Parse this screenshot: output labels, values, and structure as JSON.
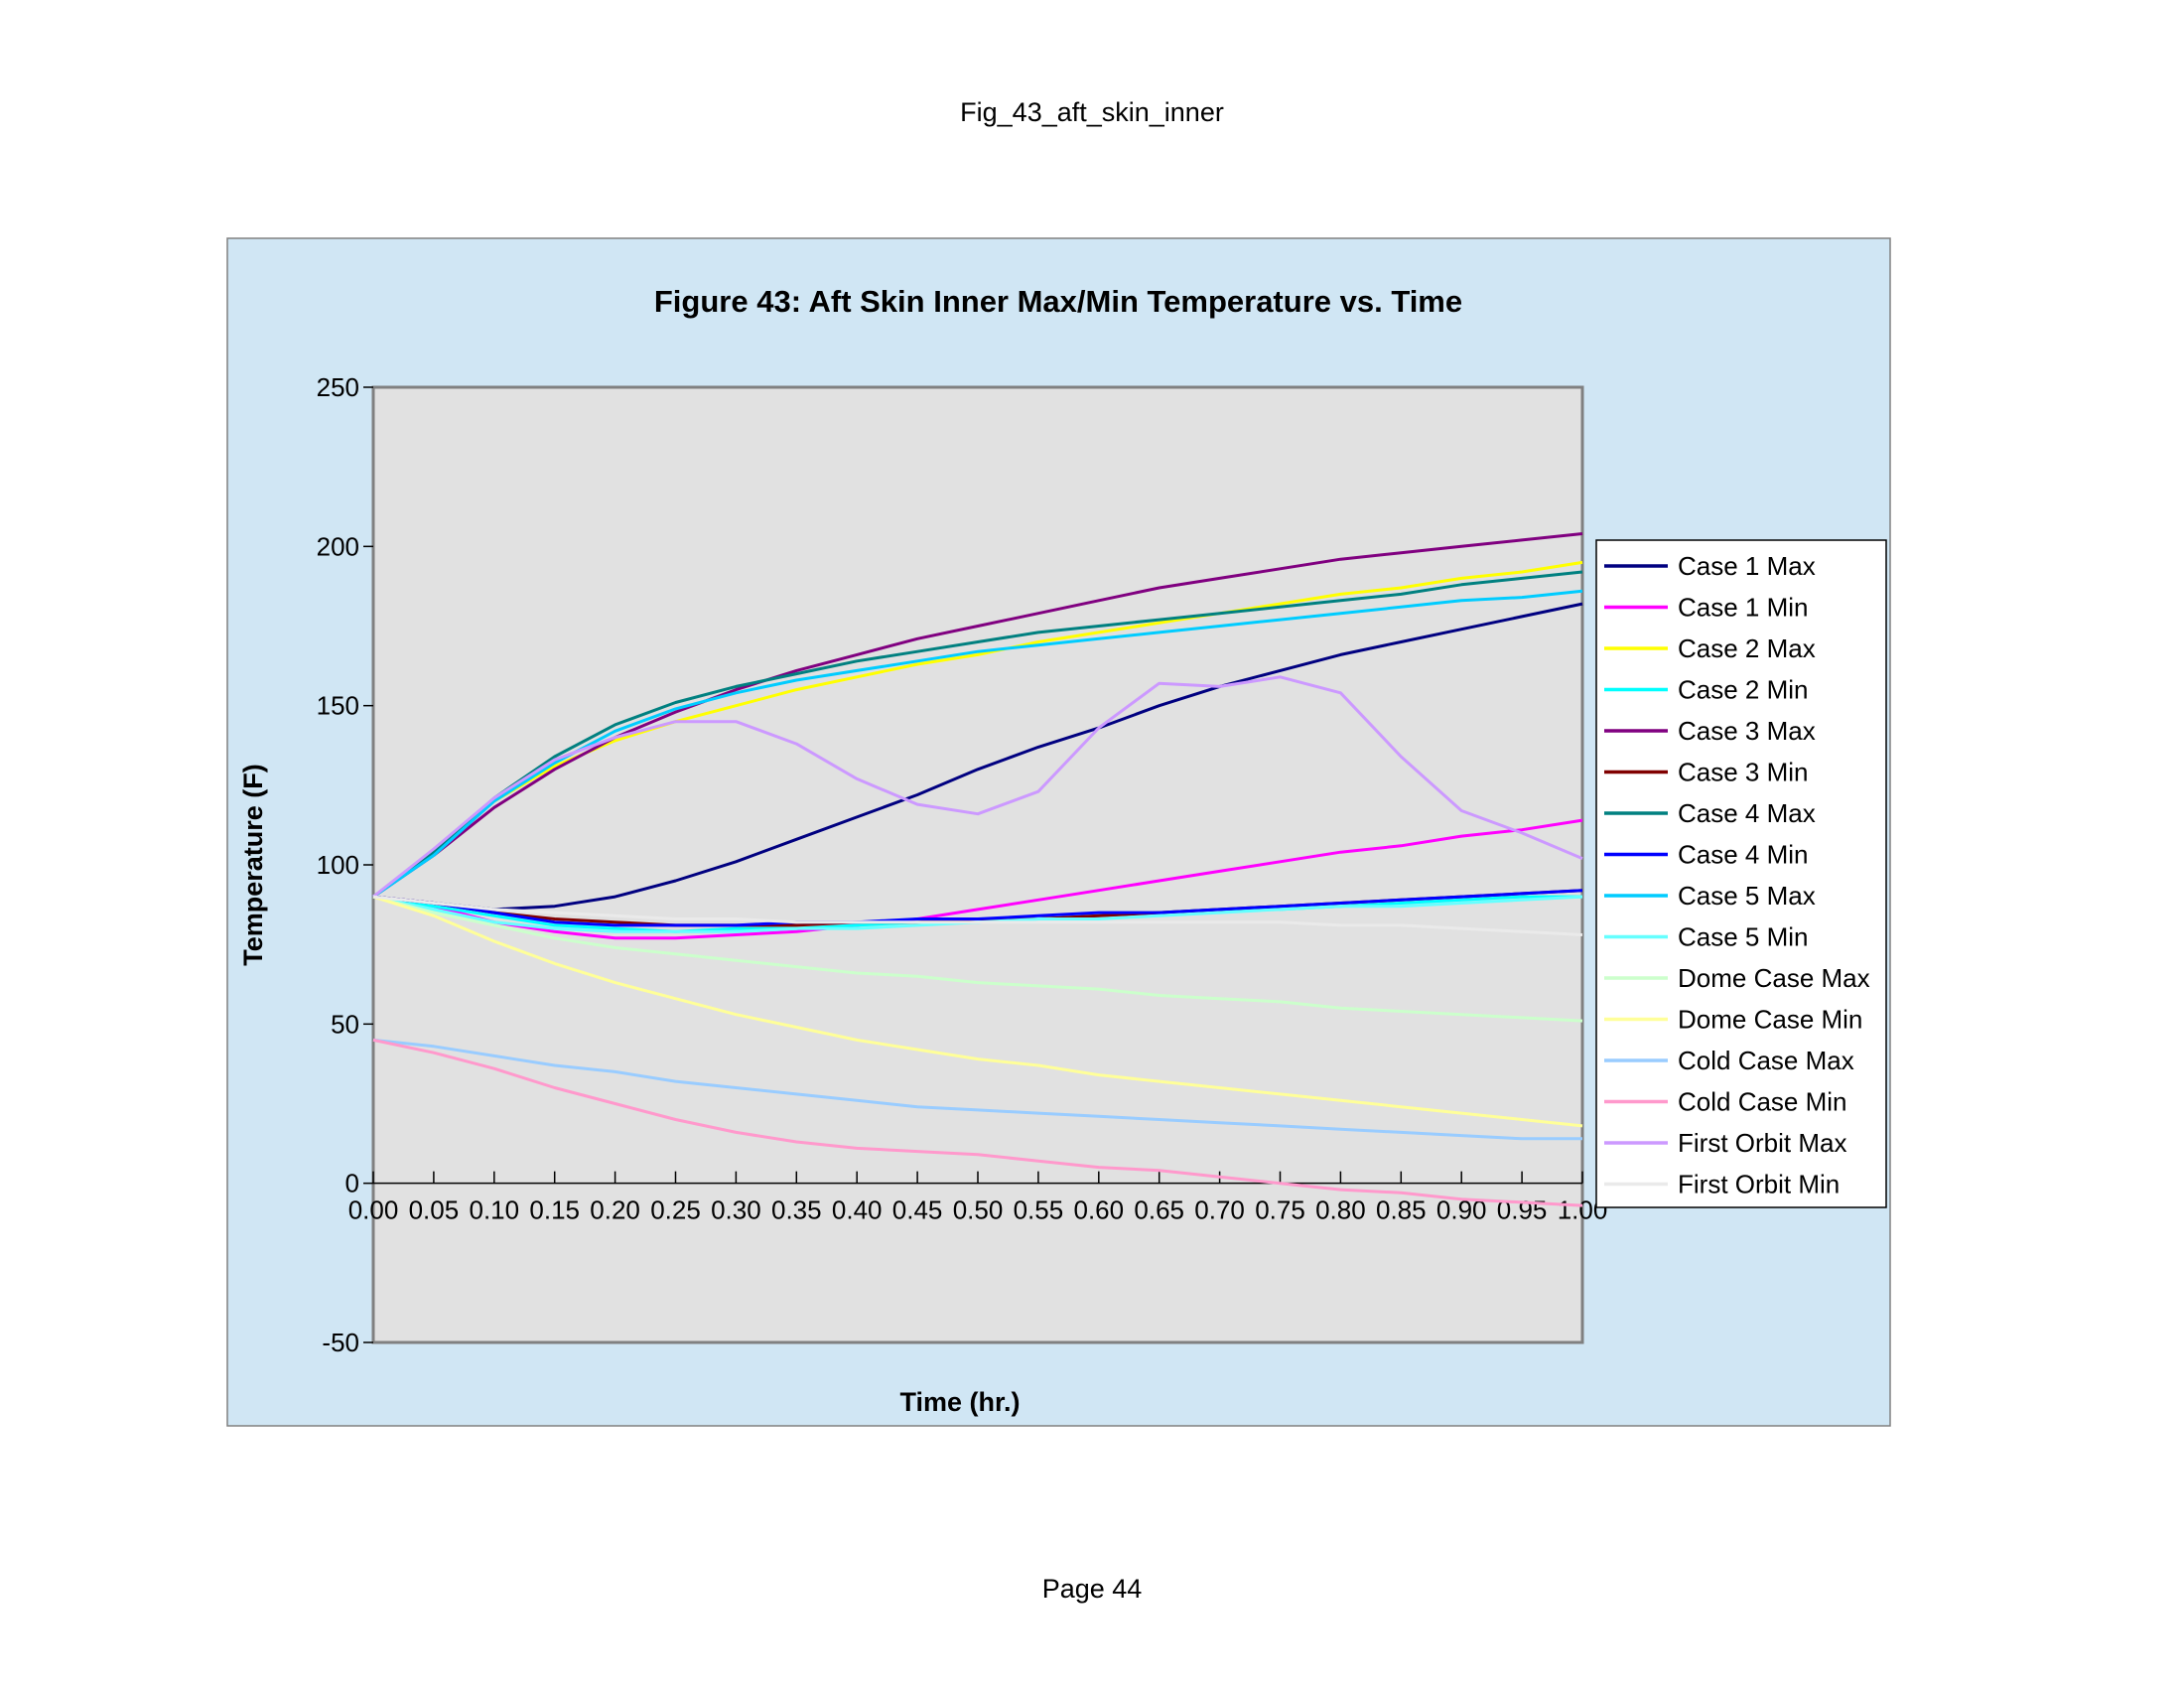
{
  "page": {
    "header": "Fig_43_aft_skin_inner",
    "footer": "Page 44"
  },
  "colors": {
    "chart_area_bg": "#d0e6f4",
    "plot_area_bg": "#e1e1e1"
  },
  "chart_data": {
    "type": "line",
    "title": "Figure 43: Aft Skin Inner Max/Min Temperature vs. Time",
    "xlabel": "Time (hr.)",
    "ylabel": "Temperature (F)",
    "xlim": [
      0,
      1
    ],
    "ylim": [
      -50,
      250
    ],
    "x_ticks": [
      "0.00",
      "0.05",
      "0.10",
      "0.15",
      "0.20",
      "0.25",
      "0.30",
      "0.35",
      "0.40",
      "0.45",
      "0.50",
      "0.55",
      "0.60",
      "0.65",
      "0.70",
      "0.75",
      "0.80",
      "0.85",
      "0.90",
      "0.95",
      "1.00"
    ],
    "y_ticks": [
      "250",
      "200",
      "150",
      "100",
      "50",
      "0",
      "-50"
    ],
    "grid": false,
    "legend_position": "right",
    "x": [
      0,
      0.05,
      0.1,
      0.15,
      0.2,
      0.25,
      0.3,
      0.35,
      0.4,
      0.45,
      0.5,
      0.55,
      0.6,
      0.65,
      0.7,
      0.75,
      0.8,
      0.85,
      0.9,
      0.95,
      1.0
    ],
    "series": [
      {
        "name": "Case 1 Max",
        "color": "#000080",
        "values": [
          90,
          88,
          86,
          87,
          90,
          95,
          101,
          108,
          115,
          122,
          130,
          137,
          143,
          150,
          156,
          161,
          166,
          170,
          174,
          178,
          182
        ]
      },
      {
        "name": "Case 1 Min",
        "color": "#ff00ff",
        "values": [
          90,
          87,
          82,
          79,
          77,
          77,
          78,
          79,
          81,
          83,
          86,
          89,
          92,
          95,
          98,
          101,
          104,
          106,
          109,
          111,
          114
        ]
      },
      {
        "name": "Case 2 Max",
        "color": "#ffff00",
        "values": [
          90,
          104,
          120,
          131,
          139,
          145,
          150,
          155,
          159,
          163,
          166,
          170,
          173,
          176,
          179,
          182,
          185,
          187,
          190,
          192,
          195
        ]
      },
      {
        "name": "Case 2 Min",
        "color": "#00ffff",
        "values": [
          90,
          87,
          84,
          81,
          80,
          79,
          80,
          80,
          81,
          82,
          82,
          83,
          84,
          85,
          86,
          86,
          87,
          88,
          89,
          90,
          90
        ]
      },
      {
        "name": "Case 3 Max",
        "color": "#800080",
        "values": [
          90,
          103,
          118,
          130,
          140,
          148,
          155,
          161,
          166,
          171,
          175,
          179,
          183,
          187,
          190,
          193,
          196,
          198,
          200,
          202,
          204
        ]
      },
      {
        "name": "Case 3 Min",
        "color": "#800000",
        "values": [
          90,
          88,
          85,
          83,
          82,
          81,
          81,
          81,
          82,
          82,
          83,
          83,
          84,
          85,
          86,
          87,
          88,
          89,
          90,
          91,
          92
        ]
      },
      {
        "name": "Case 4 Max",
        "color": "#008080",
        "values": [
          90,
          104,
          121,
          134,
          144,
          151,
          156,
          160,
          164,
          167,
          170,
          173,
          175,
          177,
          179,
          181,
          183,
          185,
          188,
          190,
          192
        ]
      },
      {
        "name": "Case 4 Min",
        "color": "#0000ff",
        "values": [
          90,
          88,
          85,
          82,
          81,
          81,
          81,
          82,
          82,
          83,
          83,
          84,
          85,
          85,
          86,
          87,
          88,
          89,
          90,
          91,
          92
        ]
      },
      {
        "name": "Case 5 Max",
        "color": "#00ccff",
        "values": [
          90,
          103,
          120,
          132,
          142,
          149,
          154,
          158,
          161,
          164,
          167,
          169,
          171,
          173,
          175,
          177,
          179,
          181,
          183,
          184,
          186
        ]
      },
      {
        "name": "Case 5 Min",
        "color": "#66ffff",
        "values": [
          90,
          86,
          82,
          80,
          79,
          79,
          79,
          80,
          80,
          81,
          82,
          83,
          83,
          84,
          85,
          86,
          87,
          87,
          88,
          89,
          90
        ]
      },
      {
        "name": "Dome Case Max",
        "color": "#ccffcc",
        "values": [
          90,
          85,
          81,
          77,
          74,
          72,
          70,
          68,
          66,
          65,
          63,
          62,
          61,
          59,
          58,
          57,
          55,
          54,
          53,
          52,
          51
        ]
      },
      {
        "name": "Dome Case Min",
        "color": "#ffff99",
        "values": [
          90,
          84,
          76,
          69,
          63,
          58,
          53,
          49,
          45,
          42,
          39,
          37,
          34,
          32,
          30,
          28,
          26,
          24,
          22,
          20,
          18
        ]
      },
      {
        "name": "Cold Case Max",
        "color": "#99ccff",
        "values": [
          45,
          43,
          40,
          37,
          35,
          32,
          30,
          28,
          26,
          24,
          23,
          22,
          21,
          20,
          19,
          18,
          17,
          16,
          15,
          14,
          14
        ]
      },
      {
        "name": "Cold Case Min",
        "color": "#ff99cc",
        "values": [
          45,
          41,
          36,
          30,
          25,
          20,
          16,
          13,
          11,
          10,
          9,
          7,
          5,
          4,
          2,
          0,
          -2,
          -3,
          -5,
          -6,
          -7
        ]
      },
      {
        "name": "First Orbit Max",
        "color": "#cc99ff",
        "values": [
          90,
          105,
          121,
          133,
          140,
          145,
          145,
          138,
          127,
          119,
          116,
          123,
          143,
          157,
          156,
          159,
          154,
          134,
          117,
          110,
          102
        ]
      },
      {
        "name": "First Orbit Min",
        "color": "#eaeaea",
        "values": [
          90,
          88,
          86,
          85,
          84,
          83,
          83,
          82,
          82,
          82,
          82,
          82,
          82,
          82,
          82,
          82,
          81,
          81,
          80,
          79,
          78
        ]
      }
    ]
  }
}
